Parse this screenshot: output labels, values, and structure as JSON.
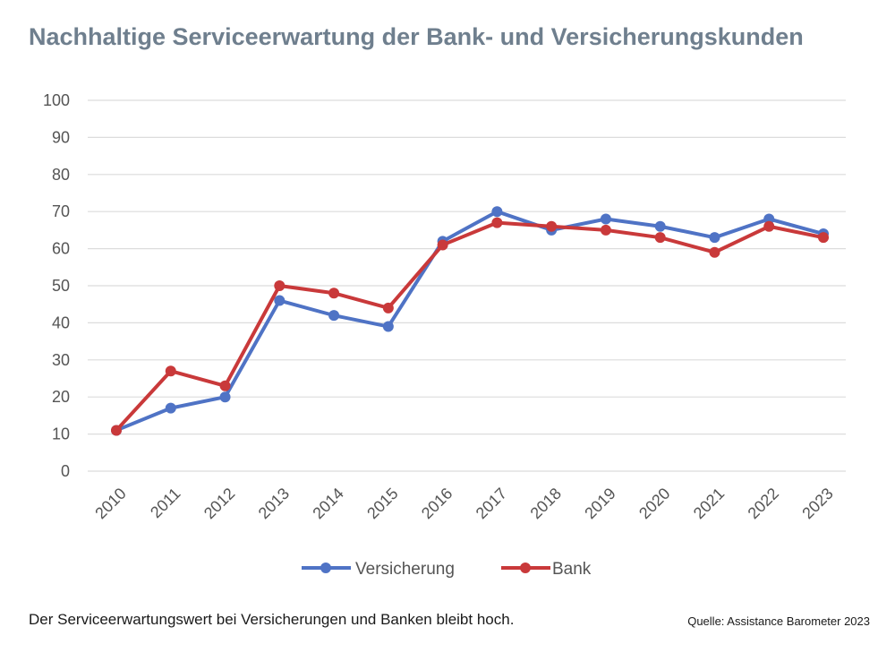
{
  "header": {
    "title": "Nachhaltige Serviceerwartung der Bank- und Versicherungskunden"
  },
  "chart_data": {
    "type": "line",
    "title": "",
    "xlabel": "",
    "ylabel": "",
    "x": [
      "2010",
      "2011",
      "2012",
      "2013",
      "2014",
      "2015",
      "2016",
      "2017",
      "2018",
      "2019",
      "2020",
      "2021",
      "2022",
      "2023"
    ],
    "ylim": [
      0,
      100
    ],
    "yticks": [
      0,
      10,
      20,
      30,
      40,
      50,
      60,
      70,
      80,
      90,
      100
    ],
    "grid": true,
    "legend": "bottom-center",
    "series": [
      {
        "name": "Versicherung",
        "color": "#4f73c5",
        "values": [
          11,
          17,
          20,
          46,
          42,
          39,
          62,
          70,
          65,
          68,
          66,
          63,
          68,
          64
        ]
      },
      {
        "name": "Bank",
        "color": "#c9393a",
        "values": [
          11,
          27,
          23,
          50,
          48,
          44,
          61,
          67,
          66,
          65,
          63,
          59,
          66,
          63
        ]
      }
    ]
  },
  "footer": {
    "caption": "Der Serviceerwartungswert bei Versicherungen und Banken bleibt hoch.",
    "source": "Quelle: Assistance Barometer 2023"
  }
}
